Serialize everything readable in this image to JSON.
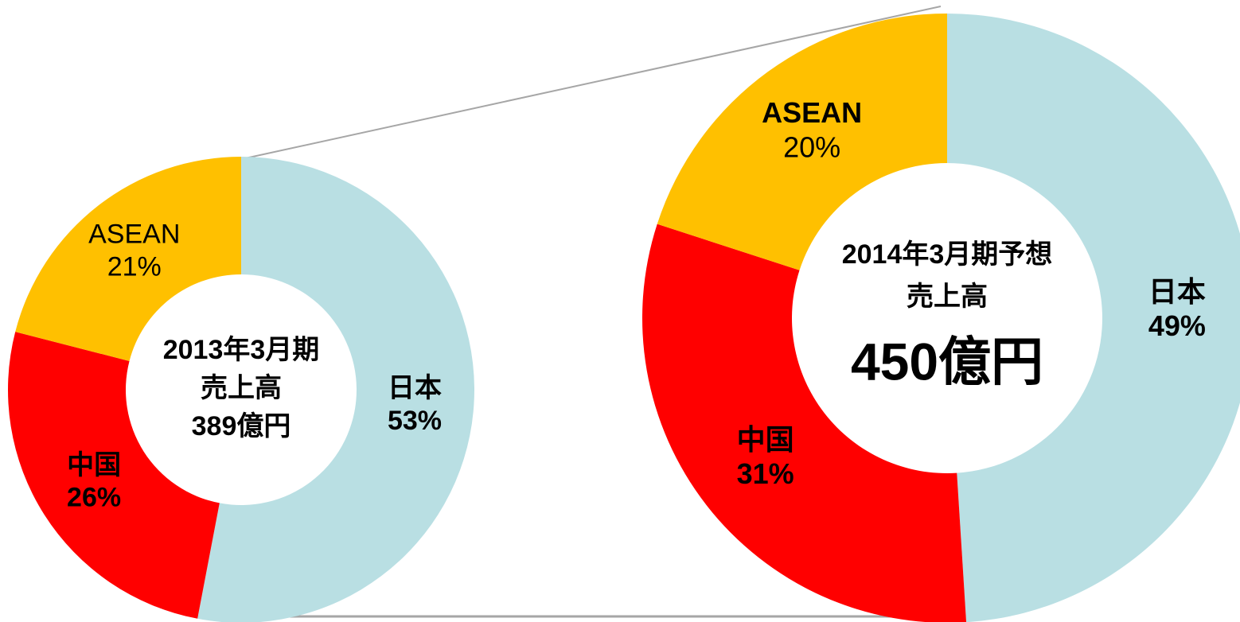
{
  "chart_data": [
    {
      "type": "donut",
      "categories": [
        "日本",
        "中国",
        "ASEAN"
      ],
      "values": [
        53,
        26,
        21
      ],
      "value_labels": [
        "53%",
        "26%",
        "21%"
      ],
      "colors": [
        "#b9dfe3",
        "#ff0000",
        "#ffc000"
      ],
      "center_lines": [
        "2013年3月期",
        "売上高",
        "389億円"
      ]
    },
    {
      "type": "donut",
      "categories": [
        "日本",
        "中国",
        "ASEAN"
      ],
      "values": [
        49,
        31,
        20
      ],
      "value_labels": [
        "49%",
        "31%",
        "20%"
      ],
      "colors": [
        "#b9dfe3",
        "#ff0000",
        "#ffc000"
      ],
      "center_lines": [
        "2014年3月期予想",
        "売上高",
        "450億円"
      ]
    }
  ]
}
